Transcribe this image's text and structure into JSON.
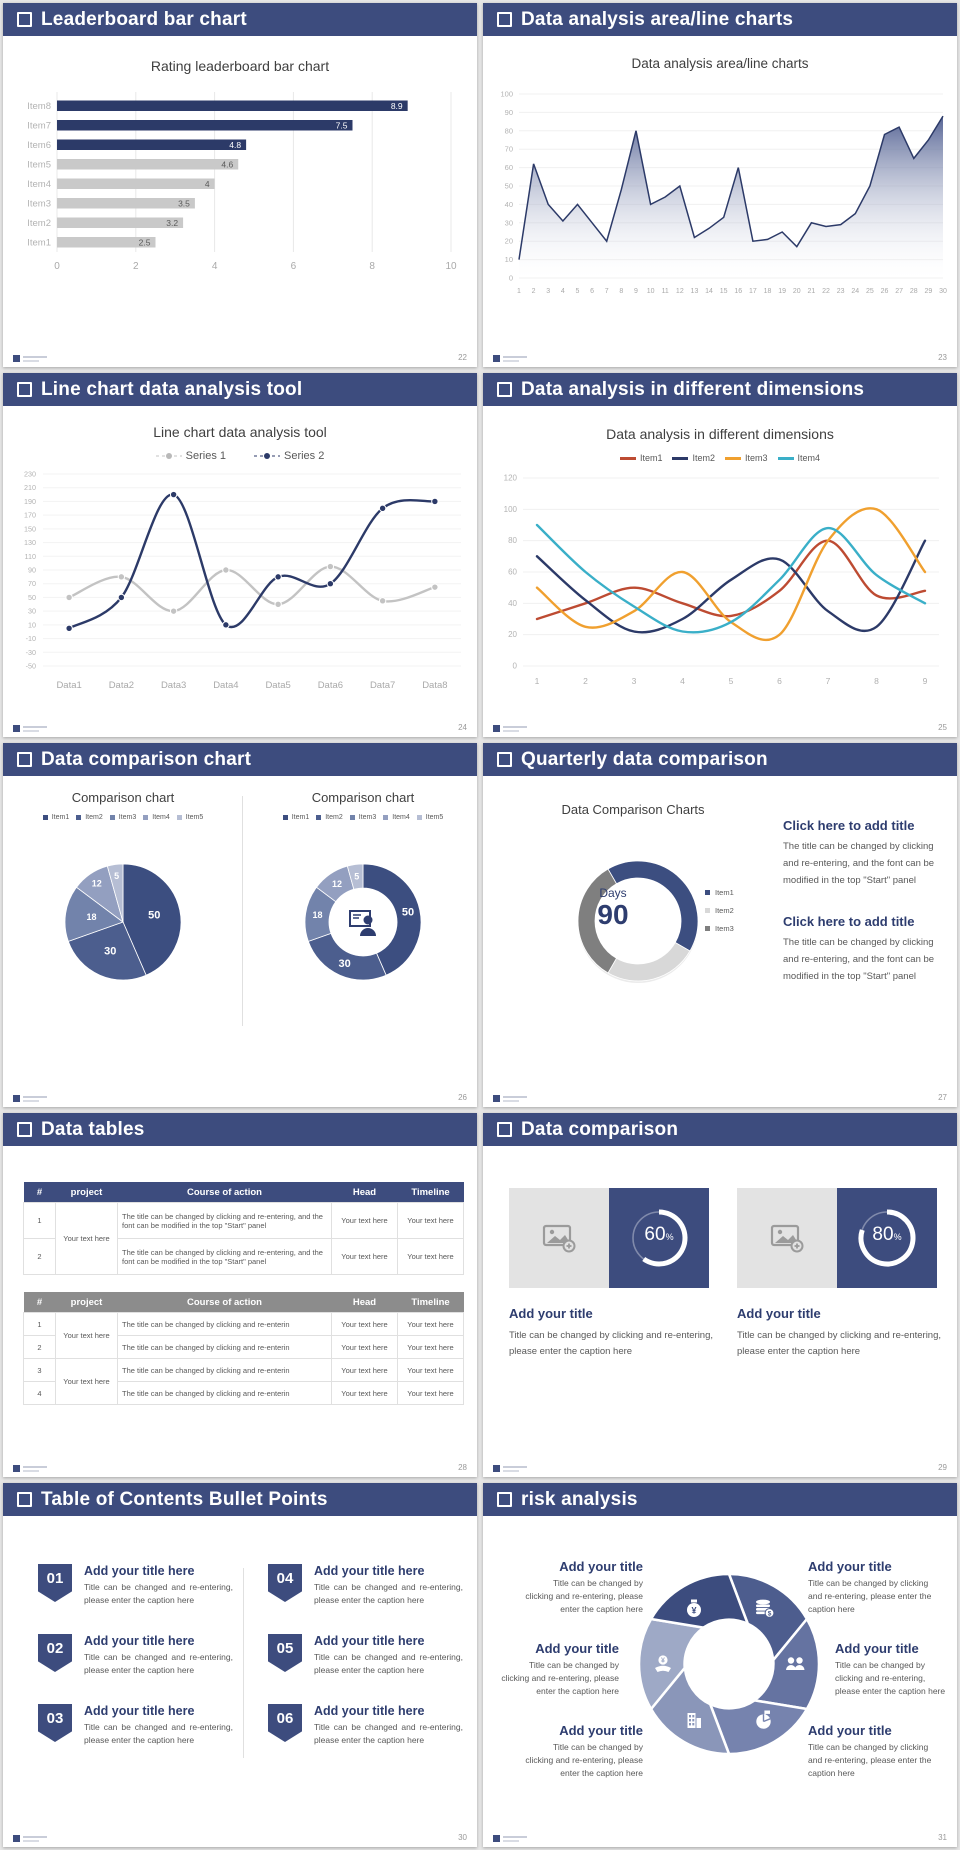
{
  "page": {
    "background": "#e6e6e6"
  },
  "theme": {
    "header_bg": "#3d4c7e",
    "navy": "#2c3a68",
    "accent": "#2e3d6f",
    "bar_gray": "#c9c9c9",
    "axis_text": "#a9a9a9",
    "body_text": "#595959",
    "pie_colors": [
      "#3c4e80",
      "#4c5e8e",
      "#7283ab",
      "#939fc0",
      "#b6bed4"
    ],
    "donut_colors": [
      "#3c4e80",
      "#d8d8d8",
      "#7f7f7f"
    ],
    "blade_colors": [
      "#4d5d8e",
      "#6573a1",
      "#7683ae",
      "#8a96b9",
      "#9ea9c6",
      "#3c4c7e"
    ]
  },
  "slides": [
    {
      "header": "Leaderboard bar chart",
      "page": "22",
      "chart_data": {
        "type": "bar",
        "title": "Rating leaderboard bar chart",
        "categories": [
          "Item1",
          "Item2",
          "Item3",
          "Item4",
          "Item5",
          "Item6",
          "Item7",
          "Item8"
        ],
        "values": [
          2.5,
          3.2,
          3.5,
          4,
          4.6,
          4.8,
          7.5,
          8.9
        ],
        "value_labels": [
          "2.5",
          "3.2",
          "3.5",
          "4",
          "4.6",
          "4.8",
          "7.5",
          "8.9"
        ],
        "highlight_count": 3,
        "bar_colors": {
          "highlight": "#2c3a68",
          "normal": "#c9c9c9"
        },
        "xlim": [
          0,
          10
        ],
        "xticks": [
          0,
          2,
          4,
          6,
          8,
          10
        ]
      }
    },
    {
      "header": "Data analysis area/line charts",
      "page": "23",
      "chart_data": {
        "type": "area",
        "title": "Data analysis area/line charts",
        "x": [
          1,
          2,
          3,
          4,
          5,
          6,
          7,
          8,
          9,
          10,
          11,
          12,
          13,
          14,
          15,
          16,
          17,
          18,
          19,
          20,
          21,
          22,
          23,
          24,
          25,
          26,
          27,
          28,
          29,
          30
        ],
        "values": [
          10,
          62,
          40,
          31,
          40,
          30,
          20,
          48,
          80,
          40,
          44,
          50,
          22,
          27,
          33,
          60,
          20,
          21,
          25,
          17,
          30,
          28,
          29,
          35,
          50,
          78,
          82,
          65,
          75,
          88
        ],
        "ylim": [
          0,
          100
        ],
        "yticks": [
          0,
          10,
          20,
          30,
          40,
          50,
          60,
          70,
          80,
          90,
          100
        ],
        "line_color": "#2c3a68"
      }
    },
    {
      "header": "Line chart data analysis tool",
      "page": "24",
      "chart_data": {
        "type": "line",
        "title": "Line chart data analysis tool",
        "categories": [
          "Data1",
          "Data2",
          "Data3",
          "Data4",
          "Data5",
          "Data6",
          "Data7",
          "Data8"
        ],
        "series": [
          {
            "name": "Series 1",
            "color": "#c3c3c3",
            "values": [
              50,
              80,
              30,
              90,
              40,
              95,
              45,
              65
            ]
          },
          {
            "name": "Series 2",
            "color": "#2c3a68",
            "values": [
              5,
              50,
              200,
              10,
              80,
              70,
              180,
              190
            ]
          }
        ],
        "ylim": [
          -50,
          230
        ],
        "yticks": [
          230,
          210,
          190,
          170,
          150,
          130,
          110,
          90,
          70,
          50,
          30,
          10,
          -10,
          -30,
          -50
        ]
      }
    },
    {
      "header": "Data analysis in different dimensions",
      "page": "25",
      "chart_data": {
        "type": "line",
        "title": "Data analysis in different dimensions",
        "x": [
          1,
          2,
          3,
          4,
          5,
          6,
          7,
          8,
          9
        ],
        "series": [
          {
            "name": "Item1",
            "color": "#bd4b32",
            "values": [
              30,
              40,
              50,
              40,
              32,
              48,
              80,
              45,
              48
            ]
          },
          {
            "name": "Item2",
            "color": "#2c3a68",
            "values": [
              70,
              42,
              22,
              30,
              55,
              68,
              35,
              25,
              80
            ]
          },
          {
            "name": "Item3",
            "color": "#f0a02f",
            "values": [
              50,
              25,
              35,
              60,
              28,
              20,
              80,
              100,
              60
            ]
          },
          {
            "name": "Item4",
            "color": "#3aafc8",
            "values": [
              90,
              60,
              38,
              22,
              28,
              55,
              88,
              58,
              40
            ]
          }
        ],
        "ylim": [
          0,
          120
        ],
        "yticks": [
          0,
          20,
          40,
          60,
          80,
          100,
          120
        ]
      }
    },
    {
      "header": "Data comparison chart",
      "page": "26",
      "chart_data": [
        {
          "type": "pie",
          "title": "Comparison chart",
          "labels": [
            "Item1",
            "Item2",
            "Item3",
            "Item4",
            "Item5"
          ],
          "values": [
            50,
            30,
            18,
            12,
            5
          ]
        },
        {
          "type": "donut",
          "title": "Comparison chart",
          "labels": [
            "Item1",
            "Item2",
            "Item3",
            "Item4",
            "Item5"
          ],
          "values": [
            50,
            30,
            18,
            12,
            5
          ],
          "center_icon": "presenter-icon"
        }
      ]
    },
    {
      "header": "Quarterly data comparison",
      "page": "27",
      "chart_data": {
        "type": "donut",
        "title": "Data Comparison Charts",
        "center_top": "Days",
        "center_value": "90",
        "legend": [
          "Item1",
          "Item2",
          "Item3"
        ],
        "segments_deg": [
          150,
          90,
          120
        ],
        "start_deg": -30
      },
      "blocks": [
        {
          "title": "Click here to add title",
          "body": "The title can be changed by clicking and re-entering, and the font can be modified in the top \"Start\" panel"
        },
        {
          "title": "Click here to add title",
          "body": "The title can be changed by clicking and re-entering, and the font can be modified in the top \"Start\" panel"
        }
      ]
    },
    {
      "header": "Data tables",
      "page": "28",
      "tables": [
        {
          "columns": [
            "#",
            "project",
            "Course of action",
            "Head",
            "Timeline"
          ],
          "project_merged": [
            "Your text here"
          ],
          "rows": [
            {
              "num": "1",
              "action": "The title can be changed by clicking and re-entering, and the font can be modified in the top \"Start\" panel",
              "head": "Your text here",
              "timeline": "Your text here"
            },
            {
              "num": "2",
              "action": "The title can be changed by clicking and re-entering, and the font can be modified in the top \"Start\" panel",
              "head": "Your text here",
              "timeline": "Your text here"
            }
          ]
        },
        {
          "columns": [
            "#",
            "project",
            "Course of action",
            "Head",
            "Timeline"
          ],
          "project_merged": [
            "Your text here",
            "Your text here"
          ],
          "rows": [
            {
              "num": "1",
              "action": "The title can be changed by clicking and re-enterin",
              "head": "Your text here",
              "timeline": "Your text here"
            },
            {
              "num": "2",
              "action": "The title can be changed by clicking and re-enterin",
              "head": "Your text here",
              "timeline": "Your text here"
            },
            {
              "num": "3",
              "action": "The title can be changed by clicking and re-enterin",
              "head": "Your text here",
              "timeline": "Your text here"
            },
            {
              "num": "4",
              "action": "The title can be changed by clicking and re-enterin",
              "head": "Your text here",
              "timeline": "Your text here"
            }
          ]
        }
      ]
    },
    {
      "header": "Data comparison",
      "page": "29",
      "cards": [
        {
          "percent": "60",
          "percent_sign": "%",
          "value": 60,
          "title": "Add your title",
          "caption": "Title can be changed by clicking and re-entering, please enter the caption here"
        },
        {
          "percent": "80",
          "percent_sign": "%",
          "value": 80,
          "title": "Add your title",
          "caption": "Title can be changed by clicking and re-entering, please enter the caption here"
        }
      ]
    },
    {
      "header": "Table of Contents Bullet Points",
      "page": "30",
      "items": [
        {
          "num": "01",
          "title": "Add your title here",
          "caption": "Title can be changed and re-entering, please enter the caption here"
        },
        {
          "num": "02",
          "title": "Add your title here",
          "caption": "Title can be changed and re-entering, please enter the caption here"
        },
        {
          "num": "03",
          "title": "Add your title here",
          "caption": "Title can be changed and re-entering, please enter the caption here"
        },
        {
          "num": "04",
          "title": "Add your title here",
          "caption": "Title can be changed and re-entering, please enter the caption here"
        },
        {
          "num": "05",
          "title": "Add your title here",
          "caption": "Title can be changed and re-entering, please enter the caption here"
        },
        {
          "num": "06",
          "title": "Add your title here",
          "caption": "Title can be changed and re-entering, please enter the caption here"
        }
      ]
    },
    {
      "header": "risk analysis",
      "page": "31",
      "icons": [
        "money-bag-icon",
        "coins-icon",
        "hand-coin-icon",
        "people-icon",
        "building-icon",
        "pie-chart-icon"
      ],
      "blocks": [
        {
          "title": "Add your title",
          "caption": "Title can be changed by clicking and re-entering, please enter the caption here"
        },
        {
          "title": "Add your title",
          "caption": "Title can be changed by clicking and re-entering, please enter the caption here"
        },
        {
          "title": "Add your title",
          "caption": "Title can be changed by clicking and re-entering, please enter the caption here"
        },
        {
          "title": "Add your title",
          "caption": "Title can be changed by clicking and re-entering, please enter the caption here"
        },
        {
          "title": "Add your title",
          "caption": "Title can be changed by clicking and re-entering, please enter the caption here"
        },
        {
          "title": "Add your title",
          "caption": "Title can be changed by clicking and re-entering, please enter the caption here"
        }
      ]
    }
  ]
}
